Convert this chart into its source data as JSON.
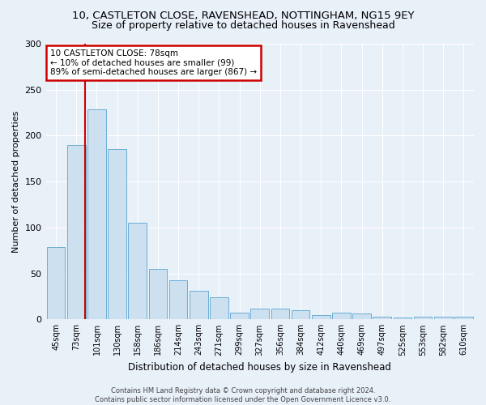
{
  "title_line1": "10, CASTLETON CLOSE, RAVENSHEAD, NOTTINGHAM, NG15 9EY",
  "title_line2": "Size of property relative to detached houses in Ravenshead",
  "xlabel": "Distribution of detached houses by size in Ravenshead",
  "ylabel": "Number of detached properties",
  "categories": [
    "45sqm",
    "73sqm",
    "101sqm",
    "130sqm",
    "158sqm",
    "186sqm",
    "214sqm",
    "243sqm",
    "271sqm",
    "299sqm",
    "327sqm",
    "356sqm",
    "384sqm",
    "412sqm",
    "440sqm",
    "469sqm",
    "497sqm",
    "525sqm",
    "553sqm",
    "582sqm",
    "610sqm"
  ],
  "values": [
    79,
    190,
    229,
    185,
    105,
    55,
    43,
    31,
    24,
    7,
    12,
    12,
    10,
    5,
    7,
    6,
    3,
    2,
    3,
    3,
    3
  ],
  "bar_color": "#cce0f0",
  "bar_edge_color": "#6aaed6",
  "property_line_x": 1.43,
  "annotation_text": "10 CASTLETON CLOSE: 78sqm\n← 10% of detached houses are smaller (99)\n89% of semi-detached houses are larger (867) →",
  "annotation_box_color": "#ffffff",
  "annotation_box_edge": "#cc0000",
  "property_line_color": "#cc0000",
  "ylim": [
    0,
    300
  ],
  "yticks": [
    0,
    50,
    100,
    150,
    200,
    250,
    300
  ],
  "footer_line1": "Contains HM Land Registry data © Crown copyright and database right 2024.",
  "footer_line2": "Contains public sector information licensed under the Open Government Licence v3.0.",
  "bg_color": "#e8f0f8",
  "grid_color": "#ffffff",
  "title1_fontsize": 9.5,
  "title2_fontsize": 9,
  "xlabel_fontsize": 8.5,
  "ylabel_fontsize": 8
}
